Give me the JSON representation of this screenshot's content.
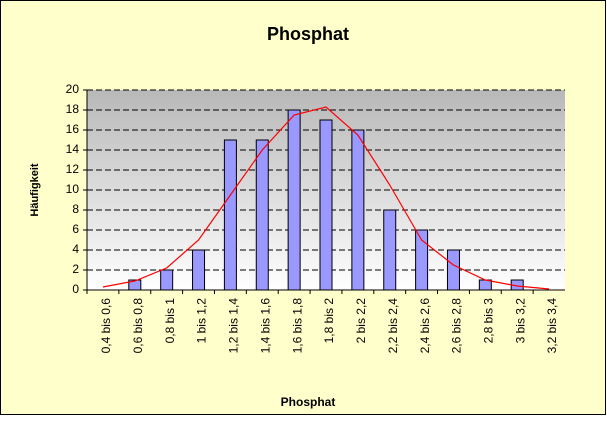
{
  "chart_data": {
    "type": "bar",
    "title": "Phosphat",
    "x_label": "Phosphat",
    "y_label": "Häufigkeit",
    "categories": [
      "0,4 bis 0,6",
      "0,6 bis 0,8",
      "0,8 bis 1",
      "1 bis 1,2",
      "1,2 bis 1,4",
      "1,4 bis 1,6",
      "1,6 bis 1,8",
      "1,8 bis 2",
      "2 bis 2,2",
      "2,2 bis 2,4",
      "2,4 bis 2,6",
      "2,6 bis 2,8",
      "2,8 bis 3",
      "3 bis 3,2",
      "3,2 bis 3,4"
    ],
    "series": [
      {
        "type": "bar",
        "color": "#9999ff",
        "values": [
          0,
          1,
          2,
          4,
          15,
          15,
          18,
          17,
          16,
          8,
          6,
          4,
          1,
          1,
          0
        ]
      },
      {
        "type": "line",
        "color": "#ff0000",
        "values": [
          0.3,
          0.9,
          2.2,
          5,
          9.5,
          14,
          17.5,
          18.3,
          15.5,
          10.5,
          5,
          2.5,
          1,
          0.4,
          0.1
        ]
      }
    ],
    "ylim": [
      0,
      20
    ],
    "yticks": [
      0,
      2,
      4,
      6,
      8,
      10,
      12,
      14,
      16,
      18,
      20
    ],
    "grid": true
  }
}
